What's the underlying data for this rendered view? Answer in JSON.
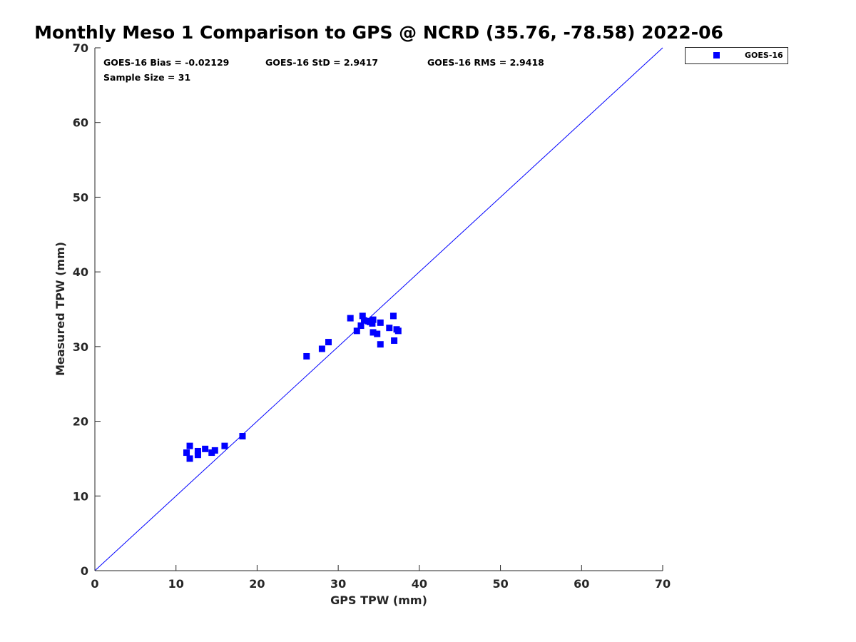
{
  "chart_data": {
    "type": "scatter",
    "title": "Monthly Meso 1 Comparison to GPS @ NCRD (35.76, -78.58) 2022-06",
    "xlabel": "GPS TPW (mm)",
    "ylabel": "Measured TPW (mm)",
    "xlim": [
      0,
      70
    ],
    "ylim": [
      0,
      70
    ],
    "xticks": [
      "0",
      "10",
      "20",
      "30",
      "40",
      "50",
      "60",
      "70"
    ],
    "yticks": [
      "0",
      "10",
      "20",
      "30",
      "40",
      "50",
      "60",
      "70"
    ],
    "grid": false,
    "legend_position": "outside-top-right",
    "stats": {
      "bias": "GOES-16 Bias = -0.02129",
      "std": "GOES-16 StD = 2.9417",
      "rms": "GOES-16 RMS = 2.9418",
      "sample": "Sample Size = 31"
    },
    "reference_line": {
      "x": [
        0,
        70
      ],
      "y": [
        0,
        70
      ],
      "color": "#0000ff"
    },
    "series": [
      {
        "name": "GOES-16",
        "color": "#0000ff",
        "marker": "square",
        "points": [
          [
            11.3,
            15.8
          ],
          [
            11.7,
            16.7
          ],
          [
            11.7,
            15.0
          ],
          [
            12.7,
            16.0
          ],
          [
            12.7,
            15.5
          ],
          [
            13.6,
            16.3
          ],
          [
            14.4,
            15.8
          ],
          [
            14.8,
            16.1
          ],
          [
            16.0,
            16.7
          ],
          [
            18.2,
            18.0
          ],
          [
            26.1,
            28.7
          ],
          [
            28.0,
            29.7
          ],
          [
            28.8,
            30.6
          ],
          [
            31.5,
            33.8
          ],
          [
            32.3,
            32.1
          ],
          [
            32.8,
            32.8
          ],
          [
            33.0,
            34.1
          ],
          [
            33.2,
            33.5
          ],
          [
            33.7,
            33.4
          ],
          [
            34.2,
            33.1
          ],
          [
            34.3,
            33.6
          ],
          [
            34.3,
            31.9
          ],
          [
            34.8,
            31.7
          ],
          [
            35.2,
            33.2
          ],
          [
            35.2,
            30.3
          ],
          [
            36.3,
            32.5
          ],
          [
            36.8,
            34.1
          ],
          [
            36.9,
            30.8
          ],
          [
            37.2,
            32.3
          ],
          [
            37.4,
            32.1
          ],
          [
            33.9,
            33.3
          ]
        ]
      }
    ]
  }
}
